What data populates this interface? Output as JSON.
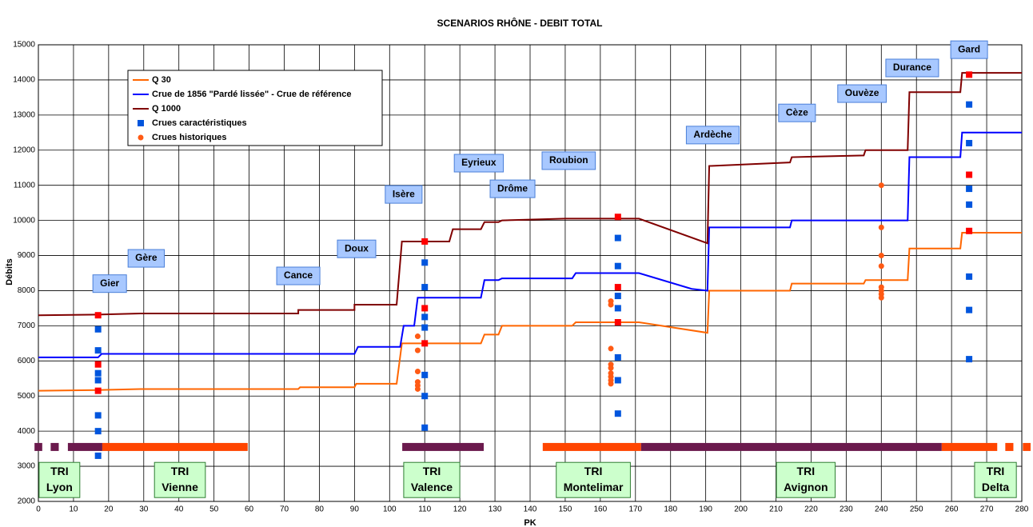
{
  "chart_data": {
    "type": "line",
    "title": "SCENARIOS RHÔNE - DEBIT TOTAL",
    "x_label": "PK",
    "y_label": "Débits",
    "xlim": [
      0,
      280
    ],
    "ylim": [
      2000,
      15000
    ],
    "xticks": [
      0,
      10,
      20,
      30,
      40,
      50,
      60,
      70,
      80,
      90,
      100,
      110,
      120,
      130,
      140,
      150,
      160,
      170,
      180,
      190,
      200,
      210,
      220,
      230,
      240,
      250,
      260,
      270,
      280
    ],
    "yticks": [
      2000,
      3000,
      4000,
      5000,
      6000,
      7000,
      8000,
      9000,
      10000,
      11000,
      12000,
      13000,
      14000,
      15000
    ],
    "grid": true,
    "legend": "upper left",
    "series": [
      {
        "name": "Q 30",
        "kind": "line",
        "color": "#ff6600",
        "x": [
          0,
          17,
          29,
          74,
          74.5,
          90,
          90.5,
          102,
          103.5,
          126,
          127,
          131,
          132,
          152,
          153,
          171,
          190.5,
          191,
          214,
          214.5,
          235,
          235.5,
          247.5,
          248,
          262.5,
          263,
          280
        ],
        "values": [
          5150,
          5170,
          5200,
          5200,
          5250,
          5250,
          5350,
          5350,
          6500,
          6500,
          6750,
          6750,
          7000,
          7000,
          7100,
          7100,
          6800,
          8000,
          8000,
          8200,
          8200,
          8300,
          8300,
          9200,
          9200,
          9650,
          9650
        ]
      },
      {
        "name": "Crue de 1856 \"Pardé lissée\" - Crue de référence",
        "kind": "line",
        "color": "#0000ff",
        "x": [
          0,
          17,
          18,
          90,
          91,
          103,
          104,
          107,
          108,
          126,
          127,
          131,
          132,
          152,
          153,
          171,
          186,
          190.5,
          191,
          214,
          214.5,
          247.5,
          248,
          262.5,
          263,
          280
        ],
        "values": [
          6100,
          6100,
          6200,
          6200,
          6400,
          6400,
          7000,
          7000,
          7800,
          7800,
          8300,
          8300,
          8350,
          8350,
          8500,
          8500,
          8050,
          8000,
          9800,
          9800,
          10000,
          10000,
          11800,
          11800,
          12500,
          12500
        ]
      },
      {
        "name": "Q 1000",
        "kind": "line",
        "color": "#800000",
        "x": [
          0,
          17,
          29,
          74,
          74,
          90,
          90,
          102,
          103.5,
          117,
          118,
          126,
          127,
          131,
          132,
          150,
          171,
          190.5,
          191,
          214,
          214.5,
          235,
          235.5,
          247.5,
          248,
          262.5,
          263,
          280
        ],
        "values": [
          7300,
          7320,
          7350,
          7350,
          7450,
          7450,
          7600,
          7600,
          9400,
          9400,
          9750,
          9750,
          9950,
          9950,
          10000,
          10050,
          10050,
          9350,
          11550,
          11650,
          11800,
          11850,
          12000,
          12000,
          13650,
          13650,
          14200,
          14200
        ]
      },
      {
        "name": "Crues caractéristiques",
        "kind": "scatter",
        "marker": "square",
        "color": "#0055dd",
        "x": [
          17,
          17,
          17,
          17,
          17,
          17,
          17,
          110,
          110,
          110,
          110,
          110,
          110,
          110,
          165,
          165,
          165,
          165,
          165,
          165,
          165,
          265,
          265,
          265,
          265,
          265,
          265,
          265
        ],
        "values": [
          3300,
          4000,
          4450,
          5450,
          5650,
          6300,
          6900,
          4100,
          5000,
          5600,
          6950,
          7250,
          8100,
          8800,
          4500,
          5450,
          6100,
          7500,
          7850,
          8700,
          9500,
          6050,
          7450,
          8400,
          10450,
          10900,
          12200,
          13300
        ]
      },
      {
        "name": "Crues historiques",
        "kind": "scatter",
        "marker": "circle",
        "color": "#ff5a14",
        "x": [
          108,
          108,
          108,
          108,
          108,
          108,
          163,
          163,
          163,
          163,
          163,
          163,
          163,
          163,
          163,
          240,
          240,
          240,
          240,
          240,
          240,
          240,
          240
        ],
        "values": [
          5200,
          5300,
          5400,
          5700,
          6300,
          6700,
          5350,
          5450,
          5550,
          5650,
          5800,
          5900,
          6350,
          7600,
          7700,
          7800,
          7900,
          8000,
          8100,
          8700,
          9000,
          9800,
          11000
        ]
      },
      {
        "kind": "scatter",
        "marker": "square",
        "color": "#ff0000",
        "x": [
          17,
          17,
          17,
          110,
          110,
          110,
          165,
          165,
          165,
          265,
          265,
          265
        ],
        "values": [
          5150,
          5900,
          7300,
          6500,
          7500,
          9400,
          7100,
          8100,
          10100,
          9700,
          11300,
          14150
        ]
      }
    ],
    "annotations": [
      {
        "text": "Gier",
        "x": 20.3,
        "y": 8200
      },
      {
        "text": "Gère",
        "x": 30.7,
        "y": 8920
      },
      {
        "text": "Cance",
        "x": 74,
        "y": 8420
      },
      {
        "text": "Doux",
        "x": 90.6,
        "y": 9190
      },
      {
        "text": "Isère",
        "x": 104,
        "y": 10740
      },
      {
        "text": "Eyrieux",
        "x": 125.4,
        "y": 11630
      },
      {
        "text": "Drôme",
        "x": 135,
        "y": 10900
      },
      {
        "text": "Roubion",
        "x": 151,
        "y": 11700
      },
      {
        "text": "Ardèche",
        "x": 192,
        "y": 12430
      },
      {
        "text": "Cèze",
        "x": 216,
        "y": 13060
      },
      {
        "text": "Ouvèze",
        "x": 234.5,
        "y": 13610
      },
      {
        "text": "Durance",
        "x": 248.8,
        "y": 14340
      },
      {
        "text": "Gard",
        "x": 265,
        "y": 14860
      }
    ],
    "tri": [
      {
        "lines": [
          "TRI",
          "Lyon"
        ],
        "x": 6,
        "y": 2610
      },
      {
        "lines": [
          "TRI",
          "Vienne"
        ],
        "x": 40.3,
        "y": 2610
      },
      {
        "lines": [
          "TRI",
          "Valence"
        ],
        "x": 112,
        "y": 2610
      },
      {
        "lines": [
          "TRI",
          "Montelimar"
        ],
        "x": 158,
        "y": 2610
      },
      {
        "lines": [
          "TRI",
          "Avignon"
        ],
        "x": 218.5,
        "y": 2610
      },
      {
        "lines": [
          "TRI",
          "Delta"
        ],
        "x": 272.5,
        "y": 2610
      }
    ],
    "bands_y": 3550,
    "bands": [
      {
        "x": [
          -1.1,
          1.1
        ],
        "color": "#6b1a4d"
      },
      {
        "x": [
          3.5,
          5.8
        ],
        "color": "#6b1a4d"
      },
      {
        "x": [
          8.4,
          18.2
        ],
        "color": "#6b1a4d"
      },
      {
        "x": [
          18.2,
          59.6
        ],
        "color": "#ff4500"
      },
      {
        "x": [
          103.6,
          126.8
        ],
        "color": "#6b1a4d"
      },
      {
        "x": [
          143.6,
          171.6
        ],
        "color": "#ff4500"
      },
      {
        "x": [
          171.6,
          257.2
        ],
        "color": "#6b1a4d"
      },
      {
        "x": [
          257.2,
          273
        ],
        "color": "#ff4500"
      },
      {
        "x": [
          275.3,
          277.6
        ],
        "color": "#ff4500"
      },
      {
        "x": [
          280.3,
          282.5
        ],
        "color": "#ff4500"
      }
    ]
  }
}
